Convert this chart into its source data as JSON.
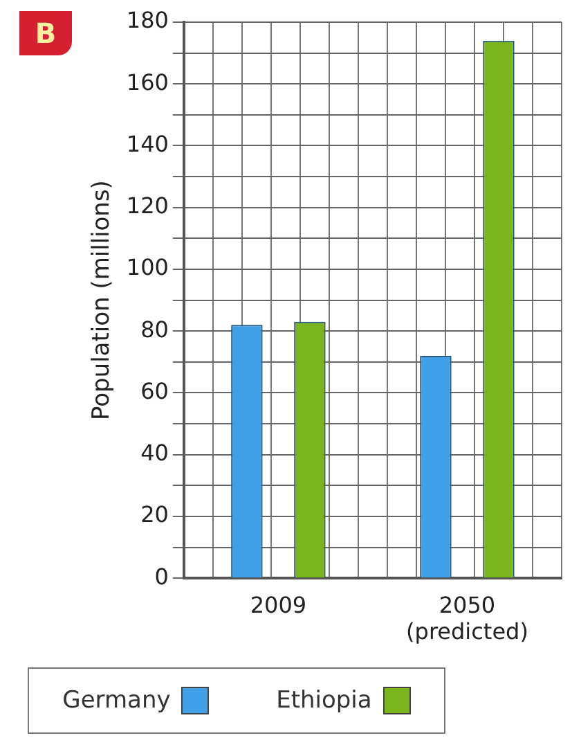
{
  "chart_data": {
    "type": "bar",
    "ylabel": "Population (millions)",
    "categories": [
      "2009",
      "2050 (predicted)"
    ],
    "series": [
      {
        "name": "Germany",
        "color": "#3fa0e8",
        "values": [
          82,
          72
        ]
      },
      {
        "name": "Ethiopia",
        "color": "#7ab51d",
        "values": [
          83,
          174
        ]
      }
    ],
    "ylim": [
      0,
      180
    ],
    "yticks": [
      0,
      {
        "value": 10,
        "label": null
      },
      20,
      {
        "value": 30,
        "label": null
      },
      40,
      {
        "value": 50,
        "label": null
      },
      60,
      {
        "value": 70,
        "label": null
      },
      80,
      {
        "value": 90,
        "label": null
      },
      100,
      {
        "value": 110,
        "label": null
      },
      120,
      {
        "value": 130,
        "label": null
      },
      140,
      {
        "value": 150,
        "label": null
      },
      160,
      {
        "value": 170,
        "label": null
      },
      180
    ],
    "grid": true,
    "legend": "bottom",
    "annotations": [
      "B"
    ]
  }
}
